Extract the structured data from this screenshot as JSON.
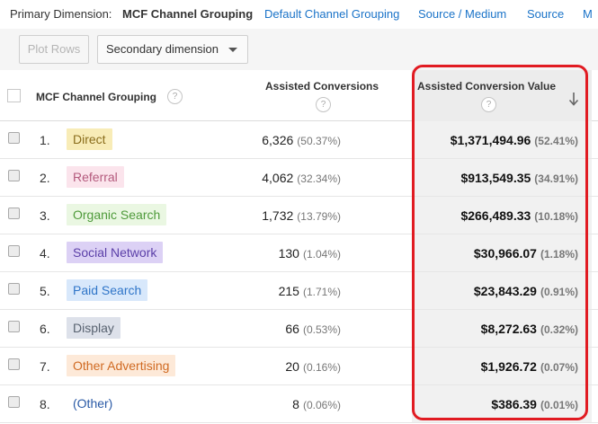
{
  "dimensions": {
    "label": "Primary Dimension:",
    "active": "MCF Channel Grouping",
    "links": [
      "Default Channel Grouping",
      "Source / Medium",
      "Source",
      "M"
    ]
  },
  "toolbar": {
    "plot_rows": "Plot Rows",
    "secondary_dimension": "Secondary dimension"
  },
  "columns": {
    "channel": "MCF Channel Grouping",
    "assisted_conversions": "Assisted Conversions",
    "assisted_value": "Assisted Conversion Value",
    "help": "?"
  },
  "rows": [
    {
      "num": "1.",
      "channel": "Direct",
      "conv": "6,326",
      "conv_pct": "(50.37%)",
      "value": "$1,371,494.96",
      "value_pct": "(52.41%)"
    },
    {
      "num": "2.",
      "channel": "Referral",
      "conv": "4,062",
      "conv_pct": "(32.34%)",
      "value": "$913,549.35",
      "value_pct": "(34.91%)"
    },
    {
      "num": "3.",
      "channel": "Organic Search",
      "conv": "1,732",
      "conv_pct": "(13.79%)",
      "value": "$266,489.33",
      "value_pct": "(10.18%)"
    },
    {
      "num": "4.",
      "channel": "Social Network",
      "conv": "130",
      "conv_pct": "(1.04%)",
      "value": "$30,966.07",
      "value_pct": "(1.18%)"
    },
    {
      "num": "5.",
      "channel": "Paid Search",
      "conv": "215",
      "conv_pct": "(1.71%)",
      "value": "$23,843.29",
      "value_pct": "(0.91%)"
    },
    {
      "num": "6.",
      "channel": "Display",
      "conv": "66",
      "conv_pct": "(0.53%)",
      "value": "$8,272.63",
      "value_pct": "(0.32%)"
    },
    {
      "num": "7.",
      "channel": "Other Advertising",
      "conv": "20",
      "conv_pct": "(0.16%)",
      "value": "$1,926.72",
      "value_pct": "(0.07%)"
    },
    {
      "num": "8.",
      "channel": "(Other)",
      "conv": "8",
      "conv_pct": "(0.06%)",
      "value": "$386.39",
      "value_pct": "(0.01%)"
    }
  ],
  "colors": {
    "link": "#1a73c8",
    "highlight_border": "#e11b22",
    "channel_tags": [
      {
        "bg": "#f8ecb7",
        "fg": "#8a6d1c"
      },
      {
        "bg": "#fbe4ec",
        "fg": "#b45a7d"
      },
      {
        "bg": "#eaf7e2",
        "fg": "#4e9a3a"
      },
      {
        "bg": "#dcd1f5",
        "fg": "#5b3fa8"
      },
      {
        "bg": "#d8e8fb",
        "fg": "#2f75c8"
      },
      {
        "bg": "#dde1ea",
        "fg": "#586270"
      },
      {
        "bg": "#fde9d8",
        "fg": "#d06a22"
      },
      {
        "bg": "#ffffff",
        "fg": "#2a5aa6"
      }
    ]
  }
}
